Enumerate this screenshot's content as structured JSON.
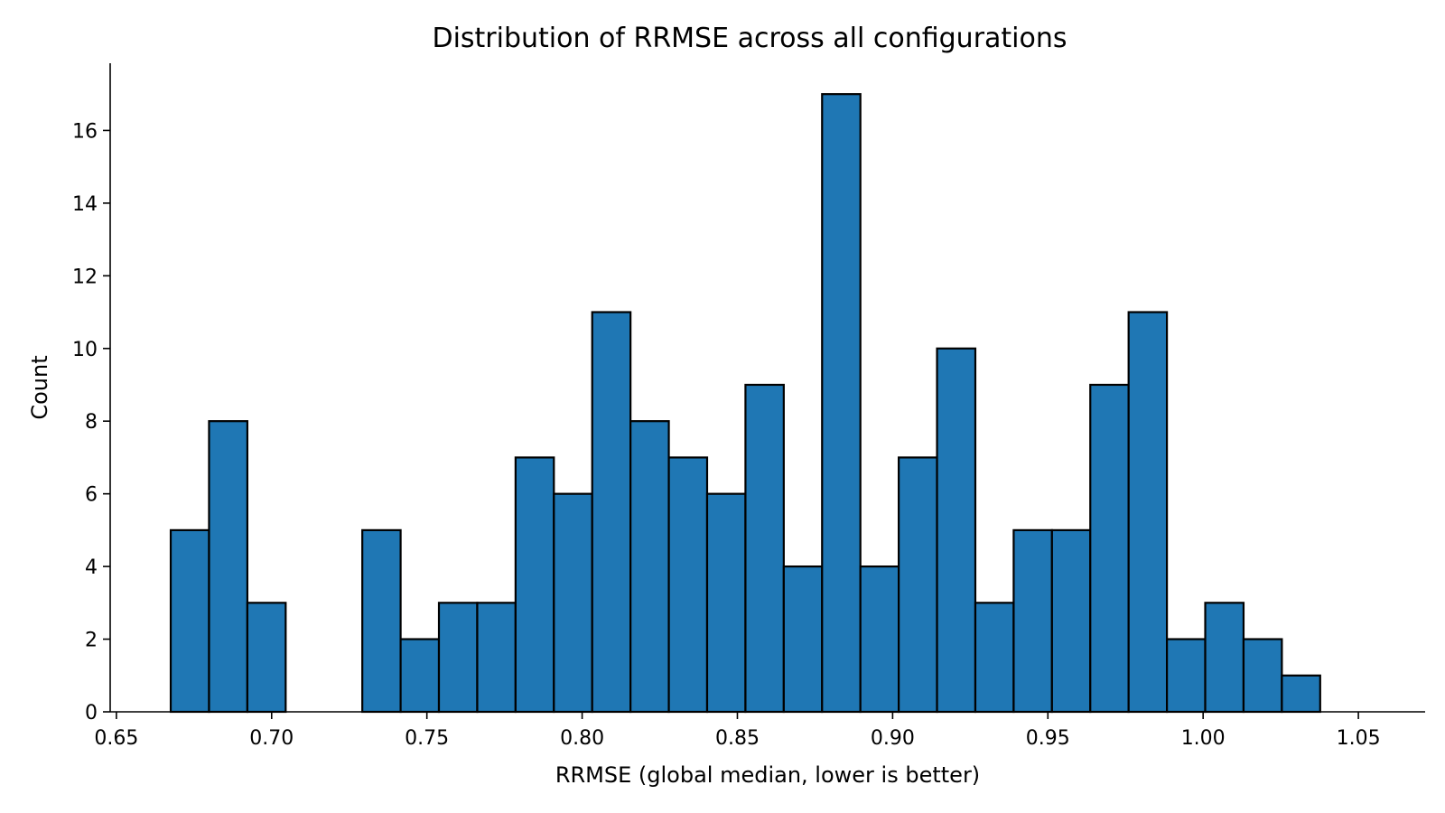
{
  "chart_data": {
    "type": "bar",
    "title": "Distribution of RRMSE across all configurations",
    "xlabel": "RRMSE (global median, lower is better)",
    "ylabel": "Count",
    "bar_color": "#1f77b4",
    "edge_color": "#000000",
    "xlim": [
      0.648,
      1.0715
    ],
    "ylim": [
      0,
      17.85
    ],
    "x_ticks": [
      0.65,
      0.7,
      0.75,
      0.8,
      0.85,
      0.9,
      0.95,
      1.0,
      1.05
    ],
    "x_tick_labels": [
      "0.65",
      "0.70",
      "0.75",
      "0.80",
      "0.85",
      "0.90",
      "0.95",
      "1.00",
      "1.05"
    ],
    "y_ticks": [
      0,
      2,
      4,
      6,
      8,
      10,
      12,
      14,
      16
    ],
    "y_tick_labels": [
      "0",
      "2",
      "4",
      "6",
      "8",
      "10",
      "12",
      "14",
      "16"
    ],
    "bin_start": 0.6675,
    "bin_end": 1.0513,
    "bin_width": 0.01234,
    "counts": [
      5,
      8,
      3,
      0,
      0,
      5,
      2,
      3,
      3,
      7,
      6,
      11,
      8,
      7,
      6,
      9,
      4,
      17,
      4,
      7,
      10,
      3,
      5,
      5,
      9,
      11,
      2,
      3,
      2,
      1
    ],
    "grid": false,
    "spines": [
      "left",
      "bottom"
    ]
  }
}
